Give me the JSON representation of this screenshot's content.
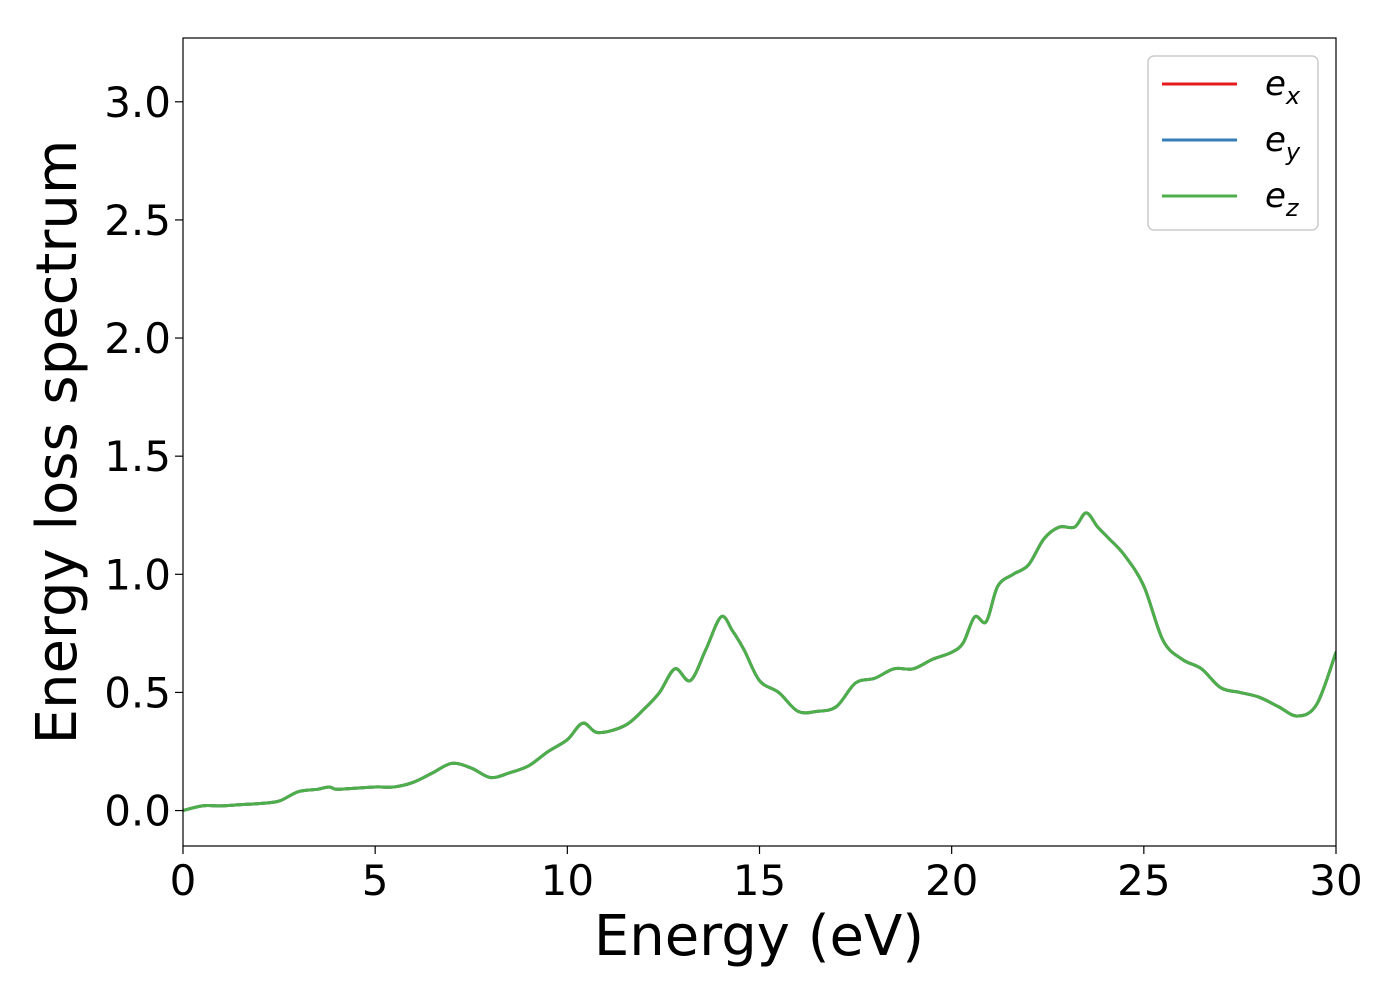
{
  "chart_data": {
    "type": "line",
    "title": "",
    "xlabel": "Energy (eV)",
    "ylabel": "Energy loss spectrum",
    "xlim": [
      0,
      30
    ],
    "ylim": [
      -0.15,
      3.27
    ],
    "xticks": [
      0,
      5,
      10,
      15,
      20,
      25,
      30
    ],
    "xtick_labels": [
      "0",
      "5",
      "10",
      "15",
      "20",
      "25",
      "30"
    ],
    "yticks": [
      0.0,
      0.5,
      1.0,
      1.5,
      2.0,
      2.5,
      3.0
    ],
    "ytick_labels": [
      "0.0",
      "0.5",
      "1.0",
      "1.5",
      "2.0",
      "2.5",
      "3.0"
    ],
    "grid": false,
    "legend_position": "top-right",
    "x": [
      0,
      0.5,
      1,
      1.5,
      2,
      2.5,
      3,
      3.5,
      3.8,
      4,
      4.5,
      5,
      5.5,
      6,
      6.5,
      7,
      7.5,
      8,
      8.5,
      9,
      9.5,
      10,
      10.4,
      10.8,
      11.5,
      12,
      12.4,
      12.8,
      13.2,
      13.6,
      14,
      14.3,
      14.6,
      15,
      15.5,
      16,
      16.5,
      17,
      17.5,
      18,
      18.5,
      19,
      19.5,
      20,
      20.3,
      20.6,
      20.9,
      21.2,
      21.6,
      22,
      22.4,
      22.8,
      23.2,
      23.5,
      23.8,
      24.1,
      24.5,
      25,
      25.5,
      26,
      26.5,
      27,
      27.5,
      28,
      28.5,
      29,
      29.5,
      30
    ],
    "series": [
      {
        "name": "e_x",
        "label_base": "e",
        "label_sub": "x",
        "color": "#e41a1c",
        "values": [
          0.0,
          0.02,
          0.02,
          0.025,
          0.03,
          0.04,
          0.08,
          0.09,
          0.1,
          0.09,
          0.095,
          0.1,
          0.1,
          0.12,
          0.16,
          0.2,
          0.18,
          0.14,
          0.16,
          0.19,
          0.25,
          0.3,
          0.37,
          0.33,
          0.36,
          0.43,
          0.5,
          0.6,
          0.55,
          0.68,
          0.82,
          0.76,
          0.68,
          0.55,
          0.5,
          0.42,
          0.42,
          0.44,
          0.54,
          0.56,
          0.6,
          0.6,
          0.64,
          0.67,
          0.71,
          0.82,
          0.8,
          0.95,
          1.0,
          1.04,
          1.15,
          1.2,
          1.2,
          1.26,
          1.2,
          1.15,
          1.08,
          0.95,
          0.72,
          0.64,
          0.6,
          0.52,
          0.5,
          0.48,
          0.44,
          0.4,
          0.45,
          0.67
        ]
      },
      {
        "name": "e_y",
        "label_base": "e",
        "label_sub": "y",
        "color": "#377eb8",
        "values": [
          0.0,
          0.02,
          0.02,
          0.025,
          0.03,
          0.04,
          0.08,
          0.09,
          0.1,
          0.09,
          0.095,
          0.1,
          0.1,
          0.12,
          0.16,
          0.2,
          0.18,
          0.14,
          0.16,
          0.19,
          0.25,
          0.3,
          0.37,
          0.33,
          0.36,
          0.43,
          0.5,
          0.6,
          0.55,
          0.68,
          0.82,
          0.76,
          0.68,
          0.55,
          0.5,
          0.42,
          0.42,
          0.44,
          0.54,
          0.56,
          0.6,
          0.6,
          0.64,
          0.67,
          0.71,
          0.82,
          0.8,
          0.95,
          1.0,
          1.04,
          1.15,
          1.2,
          1.2,
          1.26,
          1.2,
          1.15,
          1.08,
          0.95,
          0.72,
          0.64,
          0.6,
          0.52,
          0.5,
          0.48,
          0.44,
          0.4,
          0.45,
          0.67
        ]
      },
      {
        "name": "e_z",
        "label_base": "e",
        "label_sub": "z",
        "color": "#4daf4a",
        "values": [
          0.0,
          0.02,
          0.02,
          0.025,
          0.03,
          0.04,
          0.08,
          0.09,
          0.1,
          0.09,
          0.095,
          0.1,
          0.1,
          0.12,
          0.16,
          0.2,
          0.18,
          0.14,
          0.16,
          0.19,
          0.25,
          0.3,
          0.37,
          0.33,
          0.36,
          0.43,
          0.5,
          0.6,
          0.55,
          0.68,
          0.82,
          0.76,
          0.68,
          0.55,
          0.5,
          0.42,
          0.42,
          0.44,
          0.54,
          0.56,
          0.6,
          0.6,
          0.64,
          0.67,
          0.71,
          0.82,
          0.8,
          0.95,
          1.0,
          1.04,
          1.15,
          1.2,
          1.2,
          1.26,
          1.2,
          1.15,
          1.08,
          0.95,
          0.72,
          0.64,
          0.6,
          0.52,
          0.5,
          0.48,
          0.44,
          0.4,
          0.45,
          0.67
        ]
      }
    ]
  }
}
